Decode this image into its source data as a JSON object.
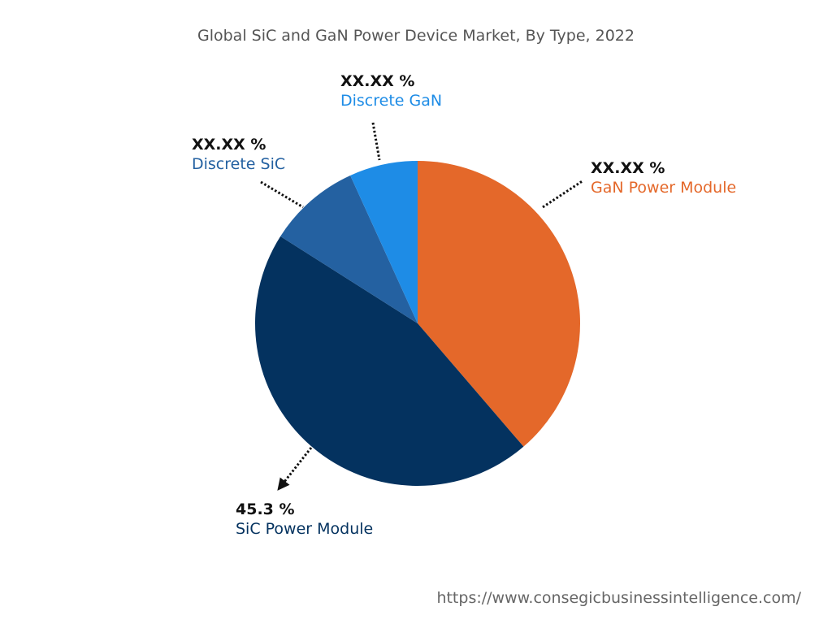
{
  "chart_data": {
    "type": "pie",
    "title": "Global SiC and GaN Power Device Market, By Type, 2022",
    "slices": [
      {
        "name": "GaN Power Module",
        "value": 38.7,
        "label": "XX.XX %",
        "color": "#E4682A"
      },
      {
        "name": "SiC Power Module",
        "value": 45.3,
        "label": "45.3 %",
        "color": "#04325F"
      },
      {
        "name": "Discrete SiC",
        "value": 9.2,
        "label": "XX.XX %",
        "color": "#2461A1"
      },
      {
        "name": "Discrete GaN",
        "value": 6.8,
        "label": "XX.XX %",
        "color": "#1E8CE6"
      }
    ],
    "start_angle": "top, clockwise"
  },
  "source": "https://www.consegicbusinessintelligence.com/"
}
